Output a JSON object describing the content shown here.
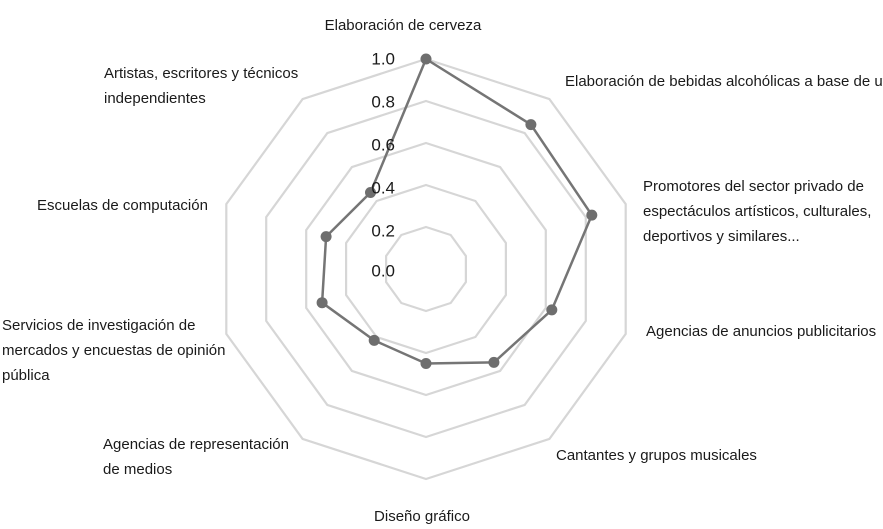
{
  "chart_data": {
    "type": "radar",
    "title": "",
    "categories": [
      "Elaboración de cerveza",
      "Elaboración de bebidas alcohólicas a base de uva",
      "Promotores del sector privado de espectáculos artísticos, culturales, deportivos y similares...",
      "Agencias de anuncios publicitarios",
      "Cantantes y grupos musicales",
      "Diseño gráfico",
      "Agencias de representación de medios",
      "Servicios de investigación de mercados y encuestas de opinión pública",
      "Escuelas de computación",
      "Artistas, escritores y técnicos independientes"
    ],
    "category_lines": [
      [
        "Elaboración de cerveza"
      ],
      [
        "Elaboración de bebidas alcohólicas a base de uva"
      ],
      [
        "Promotores del sector privado de",
        "espectáculos artísticos, culturales,",
        "deportivos y similares..."
      ],
      [
        "Agencias de anuncios publicitarios"
      ],
      [
        "Cantantes y grupos musicales"
      ],
      [
        "Diseño gráfico"
      ],
      [
        "Agencias de representación",
        "de medios"
      ],
      [
        "Servicios de investigación de",
        "mercados y encuestas de opinión",
        "pública"
      ],
      [
        "Escuelas de computación"
      ],
      [
        "Artistas, escritores y técnicos",
        "independientes"
      ]
    ],
    "values": [
      1.0,
      0.85,
      0.83,
      0.63,
      0.55,
      0.45,
      0.42,
      0.52,
      0.5,
      0.45
    ],
    "rlim": [
      0.0,
      1.0
    ],
    "ticks": [
      "0.0",
      "0.2",
      "0.4",
      "0.6",
      "0.8",
      "1.0"
    ],
    "grid": true,
    "colors": {
      "line": "#757575",
      "marker": "#6e6e6e",
      "grid": "#d6d6d6",
      "text": "#1a1a1a"
    }
  }
}
